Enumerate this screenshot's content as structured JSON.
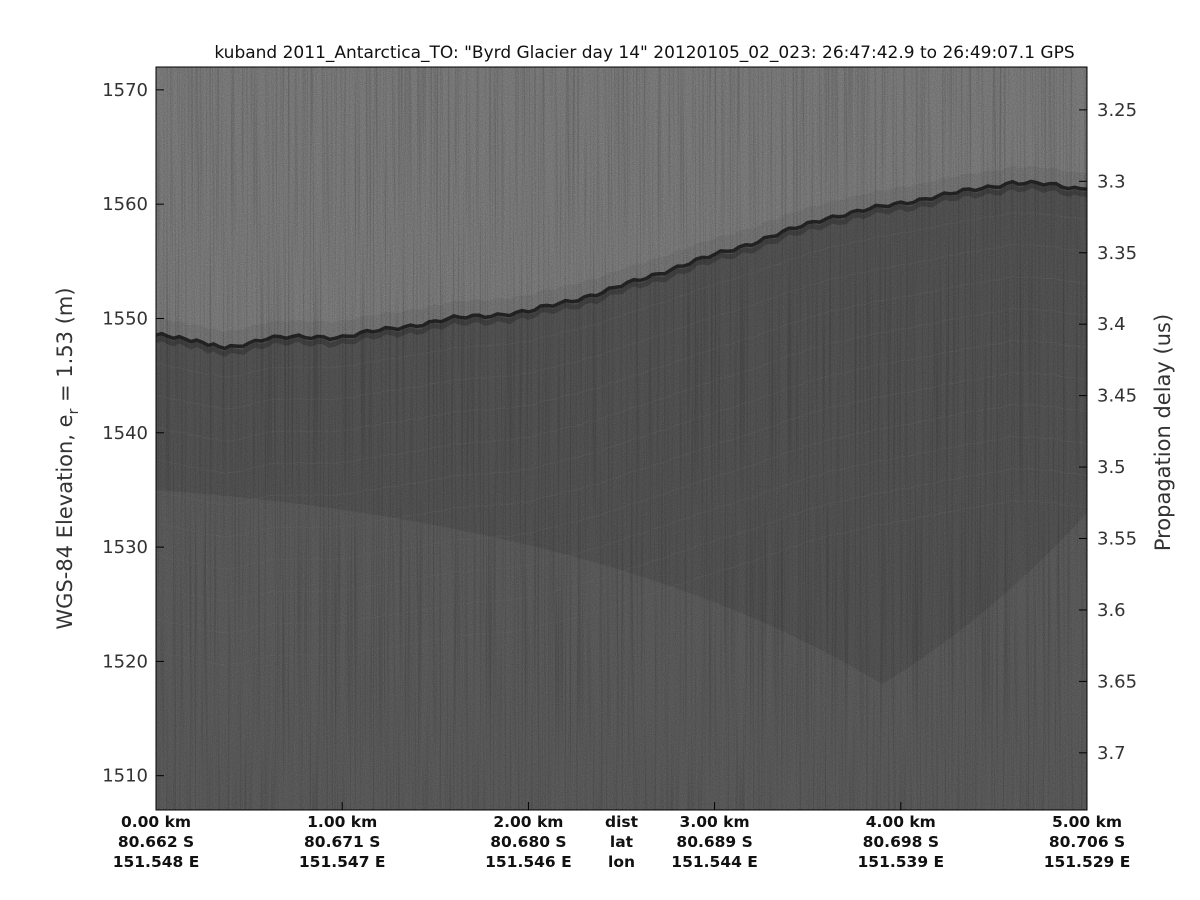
{
  "chart_data": {
    "type": "heatmap",
    "subtype": "radar echogram",
    "title": "kuband 2011_Antarctica_TO: \"Byrd Glacier day 14\"  20120105_02_023: 26:47:42.9 to 26:49:07.1 GPS",
    "ylabel_left": "WGS-84 Elevation, e",
    "ylabel_left_sub": "r",
    "ylabel_left_suffix": " = 1.53 (m)",
    "ylabel_right": "Propagation delay (us)",
    "colormap": "gray",
    "y_left": {
      "range": [
        1507,
        1572
      ],
      "ticks": [
        1510,
        1520,
        1530,
        1540,
        1550,
        1560,
        1570
      ]
    },
    "y_right": {
      "range": [
        3.22,
        3.74
      ],
      "ticks": [
        "3.25",
        "3.3",
        "3.35",
        "3.4",
        "3.45",
        "3.5",
        "3.55",
        "3.6",
        "3.65",
        "3.7"
      ]
    },
    "x": {
      "range_km": [
        0,
        5
      ],
      "row_labels": [
        "dist",
        "lat",
        "lon"
      ],
      "ticks": [
        {
          "km": 0,
          "dist": "0.00 km",
          "lat": "80.662 S",
          "lon": "151.548 E"
        },
        {
          "km": 1,
          "dist": "1.00 km",
          "lat": "80.671 S",
          "lon": "151.547 E"
        },
        {
          "km": 2,
          "dist": "2.00 km",
          "lat": "80.680 S",
          "lon": "151.546 E"
        },
        {
          "km": 3,
          "dist": "3.00 km",
          "lat": "80.689 S",
          "lon": "151.544 E"
        },
        {
          "km": 4,
          "dist": "4.00 km",
          "lat": "80.698 S",
          "lon": "151.539 E"
        },
        {
          "km": 5,
          "dist": "5.00 km",
          "lat": "80.706 S",
          "lon": "151.529 E"
        }
      ]
    },
    "surface_elevation": {
      "km": [
        0,
        0.25,
        0.4,
        0.6,
        1.0,
        1.3,
        1.6,
        2.0,
        2.4,
        2.8,
        3.2,
        3.6,
        4.0,
        4.3,
        4.6,
        4.8,
        5.0
      ],
      "elevation_m": [
        1548.7,
        1547.8,
        1547.5,
        1548.3,
        1548.4,
        1549.2,
        1550.0,
        1550.6,
        1552.3,
        1554.5,
        1556.6,
        1558.8,
        1560.1,
        1561.0,
        1561.9,
        1561.7,
        1561.3
      ]
    }
  }
}
